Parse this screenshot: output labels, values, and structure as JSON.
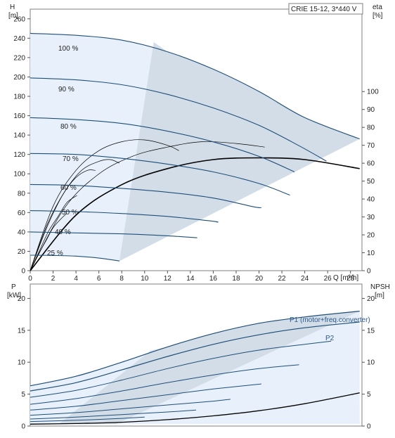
{
  "title_box": "CRIE 15-12, 3*440 V",
  "top_chart": {
    "y_label": "H",
    "y_unit": "[m]",
    "y_ticks": [
      "0",
      "20",
      "40",
      "60",
      "80",
      "100",
      "120",
      "140",
      "160",
      "180",
      "200",
      "220",
      "240",
      "260"
    ],
    "right_label": "eta",
    "right_unit": "[%]",
    "right_ticks": [
      "0",
      "10",
      "20",
      "30",
      "40",
      "50",
      "60",
      "70",
      "80",
      "90",
      "100"
    ],
    "x_label": "Q [m³/h]",
    "x_ticks": [
      "0",
      "2",
      "4",
      "6",
      "8",
      "10",
      "12",
      "14",
      "16",
      "18",
      "20",
      "22",
      "24",
      "26",
      "28"
    ],
    "speed_labels": [
      "100 %",
      "90 %",
      "80 %",
      "70 %",
      "60 %",
      "50 %",
      "40 %",
      "25 %"
    ]
  },
  "bottom_chart": {
    "y_label": "P",
    "y_unit": "[kW]",
    "y_ticks": [
      "0",
      "5",
      "10",
      "15",
      "20"
    ],
    "right_label": "NPSH",
    "right_unit": "[m]",
    "right_ticks": [
      "0",
      "5",
      "10",
      "15",
      "20"
    ],
    "label_p1": "P1 (motor+freq.converter)",
    "label_p2": "P2"
  },
  "colors": {
    "curve": "#1f4e79",
    "band_light": "#e8f1fb",
    "band_dark": "#d3dde8",
    "eta": "#000000"
  },
  "chart_data": [
    {
      "type": "line",
      "title": "",
      "xlabel": "Q [m³/h]",
      "ylabel": "H [m]",
      "xlim": [
        0,
        29
      ],
      "ylim": [
        0,
        270
      ],
      "y2label": "eta [%]",
      "y2lim": [
        0,
        100
      ],
      "series": [
        {
          "name": "100 %",
          "x": [
            0,
            4,
            8,
            12,
            16,
            20,
            24,
            28.8
          ],
          "values": [
            245,
            243,
            238,
            226,
            208,
            185,
            158,
            136
          ]
        },
        {
          "name": "90 %",
          "x": [
            0,
            4,
            8,
            12,
            16,
            20,
            23.5,
            25.9
          ],
          "values": [
            199,
            197,
            192,
            182,
            168,
            150,
            129,
            113
          ]
        },
        {
          "name": "80 %",
          "x": [
            0,
            4,
            8,
            12,
            16,
            20,
            23.1
          ],
          "values": [
            158,
            156,
            152,
            144,
            133,
            118,
            102
          ]
        },
        {
          "name": "70 %",
          "x": [
            0,
            4,
            8,
            12,
            16,
            20,
            22.7
          ],
          "values": [
            121,
            120,
            116,
            110,
            102,
            90,
            78
          ]
        },
        {
          "name": "60 %",
          "x": [
            0,
            4,
            8,
            12,
            16,
            19.5,
            20.2
          ],
          "values": [
            89,
            88,
            85,
            81,
            75,
            66,
            65
          ]
        },
        {
          "name": "50 %",
          "x": [
            0,
            4,
            8,
            12,
            16,
            16.3
          ],
          "values": [
            62,
            61,
            59,
            56,
            51,
            50
          ]
        },
        {
          "name": "40 %",
          "x": [
            0,
            4,
            8,
            12,
            14.6
          ],
          "values": [
            40,
            39,
            38,
            36,
            34
          ]
        },
        {
          "name": "25 %",
          "x": [
            0,
            2,
            4,
            6,
            7.8
          ],
          "values": [
            16,
            15.7,
            15,
            13,
            10
          ]
        }
      ],
      "eta_curves": [
        {
          "x": [
            0,
            4,
            8,
            12,
            16,
            20,
            24,
            28.8
          ],
          "values": [
            0,
            31,
            48,
            57,
            62,
            63,
            62,
            57
          ]
        },
        {
          "x": [
            0,
            3,
            6,
            9,
            12,
            15,
            18,
            20.5
          ],
          "values": [
            0,
            35,
            54,
            64,
            69,
            72,
            71,
            69
          ]
        },
        {
          "x": [
            0,
            2,
            4,
            6,
            8,
            10,
            12,
            13
          ],
          "values": [
            0,
            36,
            56,
            67,
            72,
            73,
            70,
            67
          ]
        },
        {
          "x": [
            0,
            1.5,
            3,
            4.5,
            6,
            7,
            7.8
          ],
          "values": [
            0,
            26,
            44,
            56,
            61,
            62,
            60
          ]
        },
        {
          "x": [
            0,
            1,
            2,
            3,
            4,
            5,
            5.7
          ],
          "values": [
            0,
            17,
            32,
            44,
            52,
            56,
            56
          ]
        },
        {
          "x": [
            0,
            0.8,
            1.6,
            2.4,
            3.2,
            4.1
          ],
          "values": [
            0,
            11,
            22,
            30,
            38,
            42
          ]
        },
        {
          "x": [
            0,
            0.7,
            1.4,
            2,
            2.7,
            3.2
          ],
          "values": [
            0,
            9,
            17,
            24,
            29,
            32
          ]
        }
      ]
    },
    {
      "type": "line",
      "title": "",
      "xlabel": "Q [m³/h]",
      "ylabel": "P [kW]",
      "xlim": [
        0,
        29
      ],
      "ylim": [
        0,
        22
      ],
      "y2label": "NPSH [m]",
      "y2lim": [
        0,
        22
      ],
      "series": [
        {
          "name": "P1 (motor+freq.converter)",
          "x": [
            0,
            4,
            8,
            12,
            16,
            20,
            24,
            28.8
          ],
          "values": [
            6.3,
            7.8,
            10.0,
            12.4,
            14.5,
            16.1,
            17.1,
            18.0
          ]
        },
        {
          "name": "P2",
          "x": [
            0,
            4,
            8,
            12,
            16,
            20,
            24,
            28.8
          ],
          "values": [
            5.5,
            6.8,
            8.8,
            10.9,
            12.8,
            14.3,
            15.4,
            16.3
          ]
        },
        {
          "name": "",
          "x": [
            0,
            4,
            8,
            12,
            16,
            20,
            24,
            26.3
          ],
          "values": [
            4.5,
            5.6,
            7.2,
            9.0,
            10.6,
            11.9,
            12.8,
            13.3
          ]
        },
        {
          "name": "",
          "x": [
            0,
            4,
            8,
            12,
            16,
            20,
            23.5
          ],
          "values": [
            3.4,
            4.3,
            5.5,
            6.8,
            8.0,
            9.0,
            9.6
          ]
        },
        {
          "name": "",
          "x": [
            0,
            4,
            8,
            12,
            16,
            20.2
          ],
          "values": [
            2.5,
            3.1,
            4.0,
            4.9,
            5.8,
            6.6
          ]
        },
        {
          "name": "",
          "x": [
            0,
            4,
            8,
            12,
            16,
            17.5
          ],
          "values": [
            1.7,
            2.1,
            2.7,
            3.3,
            3.9,
            4.2
          ]
        },
        {
          "name": "",
          "x": [
            0,
            4,
            8,
            12,
            14.5
          ],
          "values": [
            1.1,
            1.4,
            1.8,
            2.2,
            2.5
          ]
        },
        {
          "name": "",
          "x": [
            0,
            4,
            8,
            10
          ],
          "values": [
            0.7,
            0.9,
            1.2,
            1.4
          ]
        }
      ],
      "npsh": {
        "x": [
          0,
          4,
          8,
          12,
          16,
          20,
          24,
          28.8
        ],
        "values": [
          0.3,
          0.4,
          0.6,
          1.0,
          1.6,
          2.4,
          3.5,
          5.2
        ]
      }
    }
  ]
}
